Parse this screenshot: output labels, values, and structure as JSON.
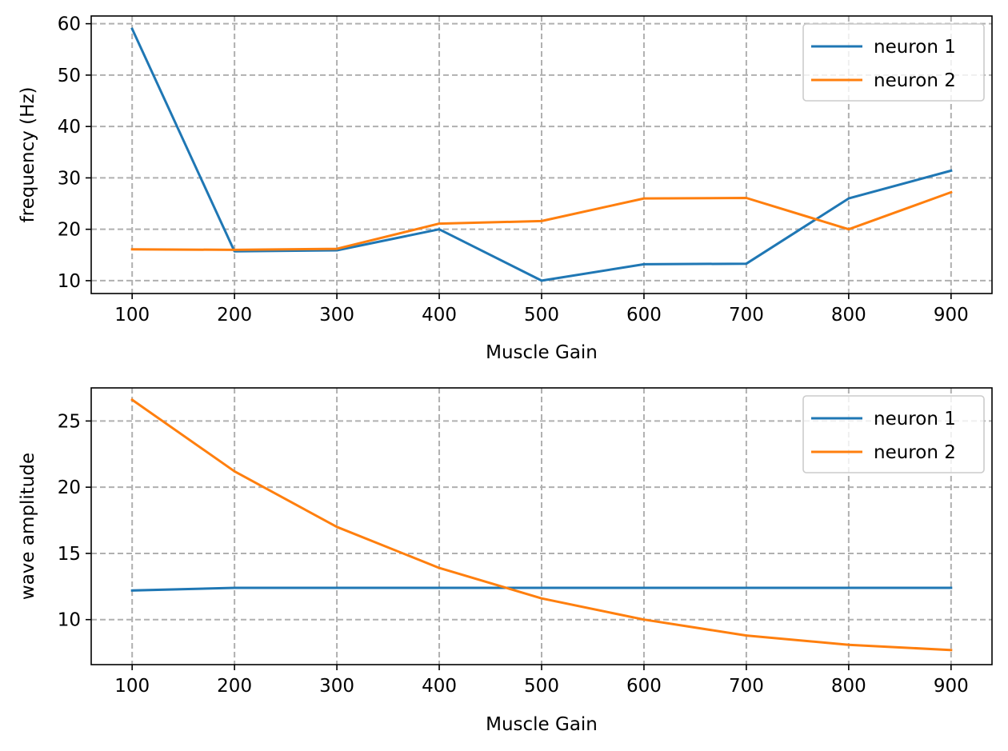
{
  "chart_data": [
    {
      "type": "line",
      "title": "",
      "xlabel": "Muscle Gain",
      "ylabel": "frequency (Hz)",
      "x": [
        100,
        200,
        300,
        400,
        500,
        600,
        700,
        800,
        900
      ],
      "xticks": [
        100,
        200,
        300,
        400,
        500,
        600,
        700,
        800,
        900
      ],
      "yticks": [
        10,
        20,
        30,
        40,
        50,
        60
      ],
      "xlim": [
        60,
        940
      ],
      "ylim": [
        7.5,
        61.5
      ],
      "grid": true,
      "legend_position": "top-right",
      "series": [
        {
          "name": "neuron 1",
          "color": "#1f77b4",
          "values": [
            59.0,
            15.7,
            15.9,
            20.0,
            10.0,
            13.2,
            13.3,
            26.0,
            31.4
          ]
        },
        {
          "name": "neuron 2",
          "color": "#ff7f0e",
          "values": [
            16.1,
            16.0,
            16.2,
            21.1,
            21.6,
            26.0,
            26.1,
            20.0,
            27.2
          ]
        }
      ]
    },
    {
      "type": "line",
      "title": "",
      "xlabel": "Muscle Gain",
      "ylabel": "wave amplitude",
      "x": [
        100,
        200,
        300,
        400,
        500,
        600,
        700,
        800,
        900
      ],
      "xticks": [
        100,
        200,
        300,
        400,
        500,
        600,
        700,
        800,
        900
      ],
      "yticks": [
        10,
        15,
        20,
        25
      ],
      "xlim": [
        60,
        940
      ],
      "ylim": [
        6.6,
        27.5
      ],
      "grid": true,
      "legend_position": "top-right",
      "series": [
        {
          "name": "neuron 1",
          "color": "#1f77b4",
          "values": [
            12.2,
            12.4,
            12.4,
            12.4,
            12.4,
            12.4,
            12.4,
            12.4,
            12.4
          ]
        },
        {
          "name": "neuron 2",
          "color": "#ff7f0e",
          "values": [
            26.6,
            21.2,
            17.0,
            13.9,
            11.6,
            10.0,
            8.8,
            8.1,
            7.7
          ]
        }
      ]
    }
  ]
}
